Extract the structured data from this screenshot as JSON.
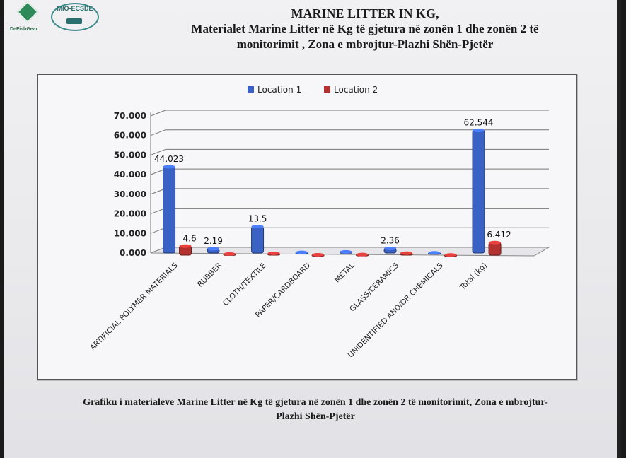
{
  "header": {
    "logo_left_label": "DeFishGear",
    "logo_right_label": "MIO-ECSDE",
    "title_line1": "MARINE LITTER IN KG,",
    "title_line2": "Materialet  Marine Litter  në Kg të gjetura në zonën 1 dhe zonën 2 të",
    "title_line3": "monitorimit , Zona e mbrojtur-Plazhi Shën-Pjetër"
  },
  "caption": {
    "line1": "Grafiku i materialeve Marine Litter në Kg të gjetura në zonën 1 dhe zonën 2 të monitorimit, Zona e mbrojtur-",
    "line2": "Plazhi Shën-Pjetër"
  },
  "chart_data": {
    "type": "bar",
    "categories": [
      "ARTIFICIAL POLYMER MATERIALS",
      "RUBBER",
      "CLOTH/TEXTILE",
      "PAPER/CARDBOARD",
      "METAL",
      "GLASS/CERAMICS",
      "UNIDENTIFIED  AND/OR CHEMICALS",
      "Total (kg)"
    ],
    "series": [
      {
        "name": "Location 1",
        "values": [
          44.023,
          2.19,
          13.5,
          0.3,
          0.6,
          2.36,
          0.1,
          62.544
        ],
        "labels": [
          "44.023",
          "2.19",
          "13.5",
          "",
          "",
          "2.36",
          "",
          "62.544"
        ],
        "color": "#3a62c4"
      },
      {
        "name": "Location 2",
        "values": [
          4.6,
          0.6,
          0.9,
          0.2,
          0.3,
          1.0,
          0.1,
          6.412
        ],
        "labels": [
          "4.6",
          "",
          "",
          "",
          "",
          "",
          "",
          "6.412"
        ],
        "color": "#b3322f"
      }
    ],
    "yticks": [
      "0.000",
      "10.000",
      "20.000",
      "30.000",
      "40.000",
      "50.000",
      "60.000",
      "70.000"
    ],
    "ylim": [
      0,
      70
    ],
    "legend_position": "top",
    "grid": true
  }
}
